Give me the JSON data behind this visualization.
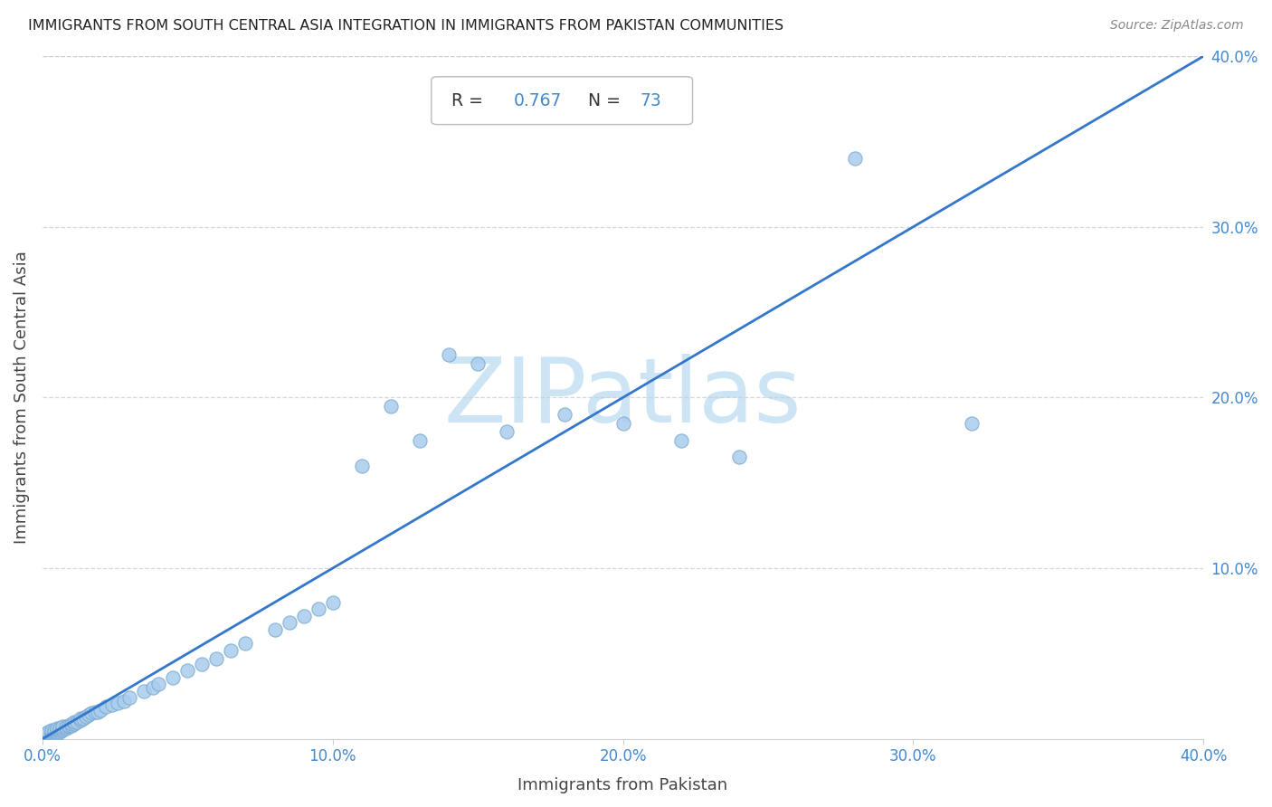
{
  "title": "IMMIGRANTS FROM SOUTH CENTRAL ASIA INTEGRATION IN IMMIGRANTS FROM PAKISTAN COMMUNITIES",
  "source": "Source: ZipAtlas.com",
  "xlabel": "Immigrants from Pakistan",
  "ylabel": "Immigrants from South Central Asia",
  "R": 0.767,
  "N": 73,
  "xlim": [
    0.0,
    0.4
  ],
  "ylim": [
    0.0,
    0.4
  ],
  "xticks": [
    0.0,
    0.1,
    0.2,
    0.3,
    0.4
  ],
  "yticks": [
    0.1,
    0.2,
    0.3,
    0.4
  ],
  "xtick_labels": [
    "0.0%",
    "10.0%",
    "20.0%",
    "30.0%",
    "40.0%"
  ],
  "ytick_labels": [
    "10.0%",
    "20.0%",
    "30.0%",
    "40.0%"
  ],
  "scatter_color": "#aaccee",
  "scatter_edge_color": "#7aaad0",
  "line_color": "#3377cc",
  "title_color": "#222222",
  "source_color": "#888888",
  "axis_label_color": "#444444",
  "tick_color": "#4488cc",
  "watermark_color": "#cce4f4",
  "background_color": "#ffffff",
  "grid_color": "#cccccc",
  "box_edge_color": "#bbbbbb",
  "R_value_color": "#4488cc",
  "N_value_color": "#4488cc",
  "label_color": "#333333",
  "x_data": [
    0.001,
    0.001,
    0.001,
    0.002,
    0.002,
    0.002,
    0.002,
    0.003,
    0.003,
    0.003,
    0.003,
    0.004,
    0.004,
    0.004,
    0.005,
    0.005,
    0.005,
    0.005,
    0.006,
    0.006,
    0.006,
    0.007,
    0.007,
    0.007,
    0.008,
    0.008,
    0.009,
    0.009,
    0.01,
    0.01,
    0.011,
    0.011,
    0.012,
    0.013,
    0.013,
    0.014,
    0.015,
    0.016,
    0.017,
    0.018,
    0.019,
    0.02,
    0.022,
    0.024,
    0.026,
    0.028,
    0.03,
    0.035,
    0.038,
    0.04,
    0.045,
    0.05,
    0.055,
    0.06,
    0.065,
    0.07,
    0.08,
    0.085,
    0.09,
    0.095,
    0.1,
    0.11,
    0.12,
    0.13,
    0.14,
    0.15,
    0.16,
    0.18,
    0.2,
    0.22,
    0.24,
    0.28,
    0.32
  ],
  "y_data": [
    0.001,
    0.002,
    0.003,
    0.001,
    0.002,
    0.003,
    0.004,
    0.002,
    0.003,
    0.004,
    0.005,
    0.003,
    0.004,
    0.005,
    0.003,
    0.004,
    0.005,
    0.006,
    0.004,
    0.005,
    0.006,
    0.005,
    0.006,
    0.007,
    0.006,
    0.007,
    0.007,
    0.008,
    0.008,
    0.009,
    0.009,
    0.01,
    0.01,
    0.011,
    0.012,
    0.012,
    0.013,
    0.014,
    0.015,
    0.016,
    0.016,
    0.017,
    0.019,
    0.02,
    0.021,
    0.022,
    0.024,
    0.028,
    0.03,
    0.032,
    0.036,
    0.04,
    0.044,
    0.047,
    0.052,
    0.056,
    0.064,
    0.068,
    0.072,
    0.076,
    0.08,
    0.16,
    0.195,
    0.175,
    0.225,
    0.22,
    0.18,
    0.19,
    0.185,
    0.175,
    0.165,
    0.34,
    0.185
  ],
  "line_x": [
    0.0,
    0.4
  ],
  "line_y": [
    0.0,
    0.4
  ]
}
